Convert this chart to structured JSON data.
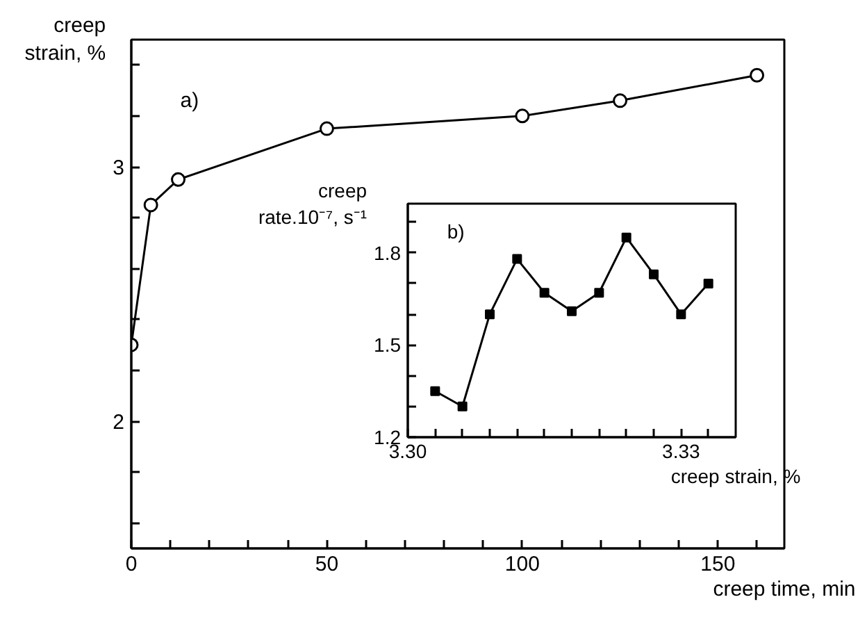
{
  "chart_data": [
    {
      "type": "line",
      "xlabel": "creep time, min",
      "ylabel": "creep\nstrain, %",
      "annotations": [
        "a)"
      ],
      "x": [
        0,
        5,
        12,
        50,
        100,
        125,
        160
      ],
      "series": [
        {
          "color": "#000000",
          "values": [
            2.3,
            2.85,
            2.95,
            3.15,
            3.2,
            3.26,
            3.36
          ]
        }
      ],
      "marker": "circle",
      "xlim": [
        0,
        167
      ],
      "ylim": [
        1.5,
        3.5
      ],
      "xticks": [
        0,
        {
          "value": 10,
          "label": null
        },
        {
          "value": 20,
          "label": null
        },
        {
          "value": 30,
          "label": null
        },
        {
          "value": 40,
          "label": null
        },
        50,
        {
          "value": 60,
          "label": null
        },
        {
          "value": 70,
          "label": null
        },
        {
          "value": 80,
          "label": null
        },
        {
          "value": 90,
          "label": null
        },
        100,
        {
          "value": 110,
          "label": null
        },
        {
          "value": 120,
          "label": null
        },
        {
          "value": 130,
          "label": null
        },
        {
          "value": 140,
          "label": null
        },
        150,
        {
          "value": 160,
          "label": null
        }
      ],
      "yticks": [
        {
          "value": 1.6,
          "label": null
        },
        {
          "value": 1.8,
          "label": null
        },
        2,
        {
          "value": 2.2,
          "label": null
        },
        {
          "value": 2.4,
          "label": null
        },
        {
          "value": 2.6,
          "label": null
        },
        {
          "value": 2.8,
          "label": null
        },
        3,
        {
          "value": 3.2,
          "label": null
        },
        {
          "value": 3.4,
          "label": null
        }
      ],
      "grid": false
    },
    {
      "type": "line",
      "xlabel": "creep strain, %",
      "ylabel": "creep\nrate.10⁻⁷, s⁻¹",
      "annotations": [
        "b)"
      ],
      "x": [
        3.303,
        3.306,
        3.309,
        3.312,
        3.315,
        3.318,
        3.321,
        3.324,
        3.327,
        3.33,
        3.333
      ],
      "series": [
        {
          "color": "#000000",
          "values": [
            1.35,
            1.3,
            1.6,
            1.78,
            1.67,
            1.61,
            1.67,
            1.85,
            1.73,
            1.6,
            1.7
          ]
        }
      ],
      "marker": "square",
      "xlim": [
        3.3,
        3.336
      ],
      "ylim": [
        1.2,
        1.96
      ],
      "xticks": [
        {
          "value": 3.3,
          "label": "3.30"
        },
        {
          "value": 3.303,
          "label": null
        },
        {
          "value": 3.306,
          "label": null
        },
        {
          "value": 3.309,
          "label": null
        },
        {
          "value": 3.312,
          "label": null
        },
        {
          "value": 3.315,
          "label": null
        },
        {
          "value": 3.318,
          "label": null
        },
        {
          "value": 3.321,
          "label": null
        },
        {
          "value": 3.324,
          "label": null
        },
        {
          "value": 3.327,
          "label": null
        },
        {
          "value": 3.33,
          "label": "3.33"
        },
        {
          "value": 3.333,
          "label": null
        }
      ],
      "yticks": [
        1.2,
        {
          "value": 1.3,
          "label": null
        },
        {
          "value": 1.4,
          "label": null
        },
        1.5,
        {
          "value": 1.6,
          "label": null
        },
        {
          "value": 1.7,
          "label": null
        },
        1.8,
        {
          "value": 1.9,
          "label": null
        }
      ],
      "grid": false
    }
  ]
}
